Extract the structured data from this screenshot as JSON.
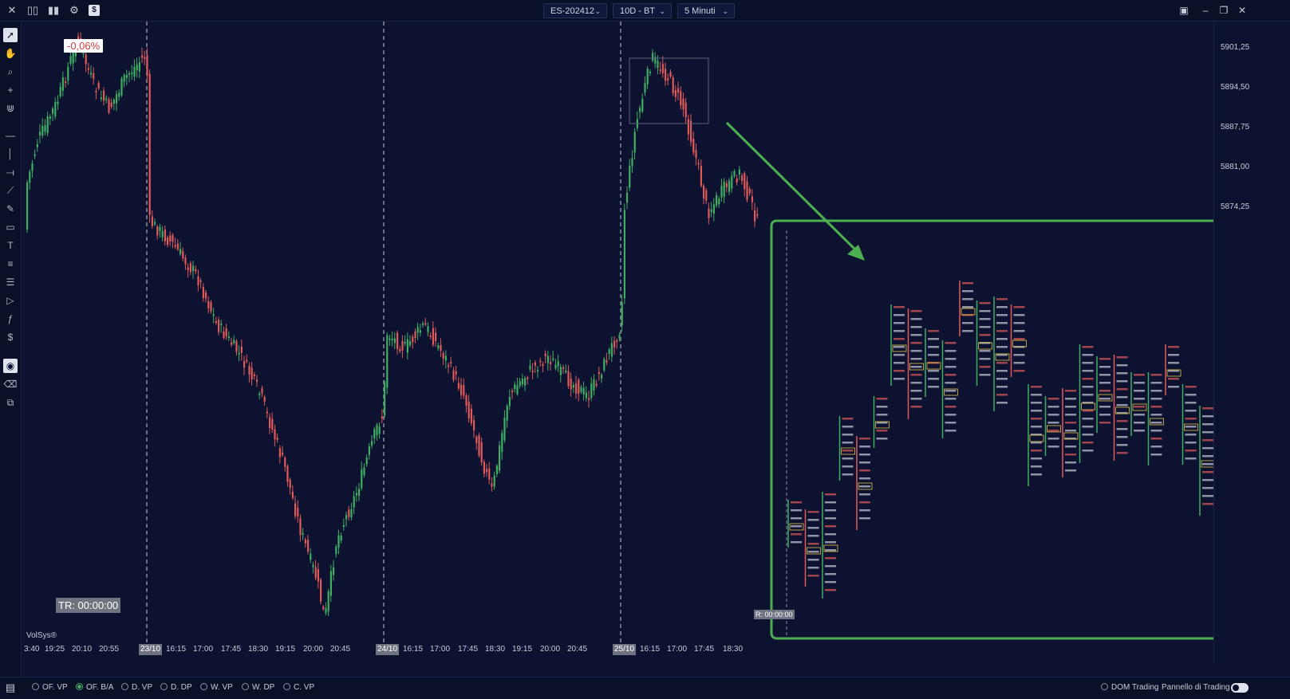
{
  "toolbar": {
    "instrument": "ES-202412",
    "period": "10D - BT",
    "timeframe": "5 Minuti"
  },
  "left_tools": [
    "cursor-icon",
    "hand-icon",
    "zoom-icon",
    "crosshair-icon",
    "magnet-icon",
    "hline-icon",
    "vline-icon",
    "ray-icon",
    "trendline-icon",
    "brush-icon",
    "rectangle-icon",
    "text-icon",
    "list-icon",
    "list-alt-icon",
    "play-icon",
    "fib-icon",
    "money-icon",
    "eye-icon",
    "eraser-icon",
    "layers-icon"
  ],
  "chart": {
    "percent_change": "-0,06%",
    "timer": "TR: 00:00:00",
    "replay_timer": "R: 00:00:00",
    "brand": "VolSys®",
    "price_ticks": [
      "5901,25",
      "5894,50",
      "5887,75",
      "5881,00",
      "5874,25"
    ],
    "date_markers": [
      "23/10",
      "24/10",
      "25/10"
    ],
    "time_labels": [
      "3:40",
      "19:25",
      "20:10",
      "20:55",
      "16:15",
      "17:00",
      "17:45",
      "18:30",
      "19:15",
      "20:00",
      "20:45",
      "16:15",
      "17:00",
      "17:45",
      "18:30",
      "19:15",
      "20:00",
      "20:45",
      "16:15",
      "17:00",
      "17:45",
      "18:30"
    ]
  },
  "bottom": {
    "options": [
      {
        "label": "OF. VP",
        "on": false
      },
      {
        "label": "OF. B/A",
        "on": true
      },
      {
        "label": "D. VP",
        "on": false
      },
      {
        "label": "D. DP",
        "on": false
      },
      {
        "label": "W. VP",
        "on": false
      },
      {
        "label": "W. DP",
        "on": false
      },
      {
        "label": "C. VP",
        "on": false
      }
    ],
    "dom_trading": "DOM Trading",
    "trading_panel": "Pannello di Trading"
  },
  "colors": {
    "background": "#0c1230",
    "up": "#3fae63",
    "down": "#e05a5a",
    "highlight": "#4caf50"
  }
}
